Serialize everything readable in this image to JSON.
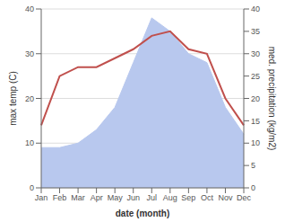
{
  "chart_data": {
    "type": "line",
    "categories": [
      "Jan",
      "Feb",
      "Mar",
      "Apr",
      "May",
      "Jun",
      "Jul",
      "Aug",
      "Sep",
      "Oct",
      "Nov",
      "Dec"
    ],
    "series": [
      {
        "type": "area",
        "color": "#b8c8ee",
        "axis": "y2",
        "values": [
          9,
          9,
          10,
          13,
          18,
          28,
          38,
          35,
          30,
          28,
          18,
          12
        ]
      },
      {
        "type": "line",
        "color": "#c0504d",
        "values": [
          14,
          25,
          27,
          27,
          29,
          31,
          34,
          35,
          31,
          30,
          20,
          14
        ]
      }
    ],
    "xlabel": "date (month)",
    "ylabel": "max temp (C)",
    "y2label": "med. precipitation (kg/m2)",
    "ylim": [
      0,
      40
    ],
    "yticks": [
      0,
      10,
      20,
      30,
      40
    ],
    "y2lim": [
      0,
      40
    ],
    "y2ticks": [
      0,
      5,
      10,
      15,
      20,
      25,
      30,
      35,
      40
    ],
    "grid": true
  }
}
